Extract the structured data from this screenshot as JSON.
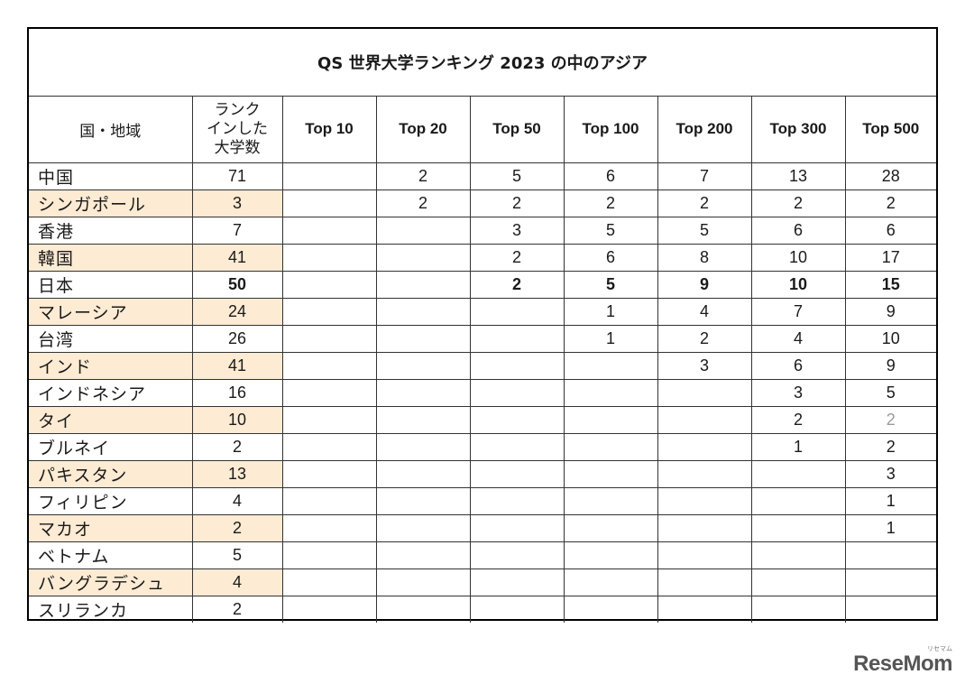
{
  "table": {
    "title": "QS 世界大学ランキング 2023 の中のアジア",
    "headers": {
      "country": "国・地域",
      "ranked": "ランク\nインした\n大学数",
      "tops": [
        "Top 10",
        "Top 20",
        "Top 50",
        "Top 100",
        "Top 200",
        "Top 300",
        "Top 500"
      ]
    },
    "rows": [
      {
        "country": "中国",
        "ranked": "71",
        "cells": [
          "",
          "2",
          "5",
          "6",
          "7",
          "13",
          "28"
        ],
        "shaded": false,
        "bold": false
      },
      {
        "country": "シンガポール",
        "ranked": "3",
        "cells": [
          "",
          "2",
          "2",
          "2",
          "2",
          "2",
          "2"
        ],
        "shaded": true,
        "bold": false
      },
      {
        "country": "香港",
        "ranked": "7",
        "cells": [
          "",
          "",
          "3",
          "5",
          "5",
          "6",
          "6"
        ],
        "shaded": false,
        "bold": false
      },
      {
        "country": "韓国",
        "ranked": "41",
        "cells": [
          "",
          "",
          "2",
          "6",
          "8",
          "10",
          "17"
        ],
        "shaded": true,
        "bold": false
      },
      {
        "country": "日本",
        "ranked": "50",
        "cells": [
          "",
          "",
          "2",
          "5",
          "9",
          "10",
          "15"
        ],
        "shaded": false,
        "bold": true
      },
      {
        "country": "マレーシア",
        "ranked": "24",
        "cells": [
          "",
          "",
          "",
          "1",
          "4",
          "7",
          "9"
        ],
        "shaded": true,
        "bold": false
      },
      {
        "country": "台湾",
        "ranked": "26",
        "cells": [
          "",
          "",
          "",
          "1",
          "2",
          "4",
          "10"
        ],
        "shaded": false,
        "bold": false
      },
      {
        "country": "インド",
        "ranked": "41",
        "cells": [
          "",
          "",
          "",
          "",
          "3",
          "6",
          "9"
        ],
        "shaded": true,
        "bold": false
      },
      {
        "country": "インドネシア",
        "ranked": "16",
        "cells": [
          "",
          "",
          "",
          "",
          "",
          "3",
          "5"
        ],
        "shaded": false,
        "bold": false
      },
      {
        "country": "タイ",
        "ranked": "10",
        "cells": [
          "",
          "",
          "",
          "",
          "",
          "2",
          "2"
        ],
        "shaded": true,
        "bold": false,
        "faded_index": 6
      },
      {
        "country": "ブルネイ",
        "ranked": "2",
        "cells": [
          "",
          "",
          "",
          "",
          "",
          "1",
          "2"
        ],
        "shaded": false,
        "bold": false
      },
      {
        "country": "パキスタン",
        "ranked": "13",
        "cells": [
          "",
          "",
          "",
          "",
          "",
          "",
          "3"
        ],
        "shaded": true,
        "bold": false
      },
      {
        "country": "フィリピン",
        "ranked": "4",
        "cells": [
          "",
          "",
          "",
          "",
          "",
          "",
          "1"
        ],
        "shaded": false,
        "bold": false
      },
      {
        "country": "マカオ",
        "ranked": "2",
        "cells": [
          "",
          "",
          "",
          "",
          "",
          "",
          "1"
        ],
        "shaded": true,
        "bold": false
      },
      {
        "country": "ベトナム",
        "ranked": "5",
        "cells": [
          "",
          "",
          "",
          "",
          "",
          "",
          ""
        ],
        "shaded": false,
        "bold": false
      },
      {
        "country": "バングラデシュ",
        "ranked": "4",
        "cells": [
          "",
          "",
          "",
          "",
          "",
          "",
          ""
        ],
        "shaded": true,
        "bold": false
      },
      {
        "country": "スリランカ",
        "ranked": "2",
        "cells": [
          "",
          "",
          "",
          "",
          "",
          "",
          ""
        ],
        "shaded": false,
        "bold": false
      }
    ]
  },
  "logo": {
    "text": "ReseMom",
    "ruby": "リセマム"
  },
  "colors": {
    "shade": "#fdebd3",
    "faded_text": "#9a9a9a"
  }
}
